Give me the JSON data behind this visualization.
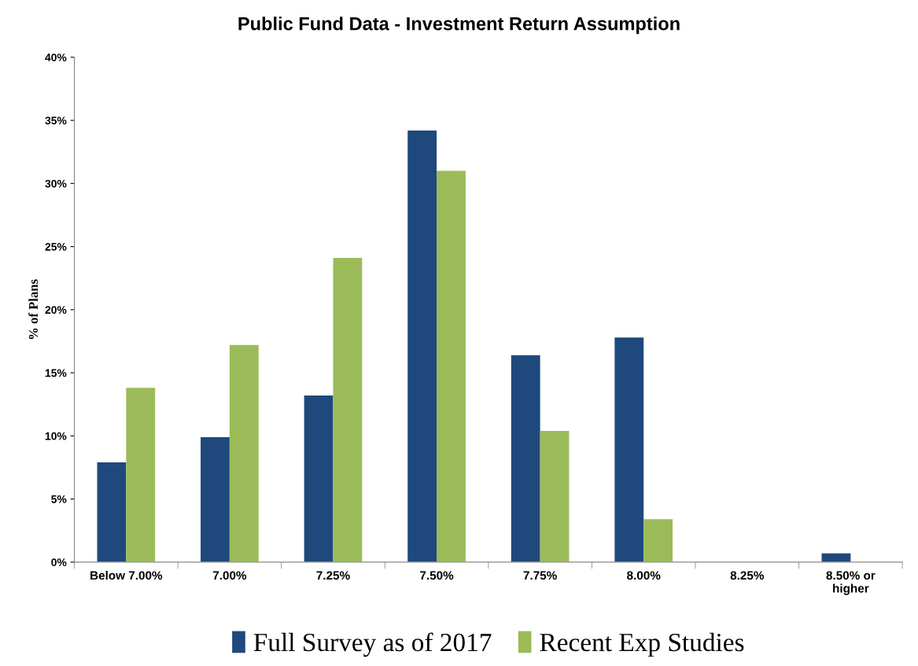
{
  "chart_data": {
    "type": "bar",
    "title": "Public Fund Data - Investment Return Assumption",
    "ylabel": "% of Plans",
    "categories": [
      "Below 7.00%",
      "7.00%",
      "7.25%",
      "7.50%",
      "7.75%",
      "8.00%",
      "8.25%",
      "8.50% or\nhigher"
    ],
    "series": [
      {
        "name": "Full Survey as of 2017",
        "color": "#1f497d",
        "values": [
          7.9,
          9.9,
          13.2,
          34.2,
          16.4,
          17.8,
          0,
          0.7
        ]
      },
      {
        "name": "Recent Exp Studies",
        "color": "#9bbb59",
        "values": [
          13.8,
          17.2,
          24.1,
          31.0,
          10.4,
          3.4,
          0,
          0
        ]
      }
    ],
    "ylim": [
      0,
      40
    ],
    "yticks": [
      {
        "value": 0,
        "label": "0%"
      },
      {
        "value": 5,
        "label": "5%"
      },
      {
        "value": 10,
        "label": "10%"
      },
      {
        "value": 15,
        "label": "15%"
      },
      {
        "value": 20,
        "label": "20%"
      },
      {
        "value": 25,
        "label": "25%"
      },
      {
        "value": 30,
        "label": "30%"
      },
      {
        "value": 35,
        "label": "35%"
      },
      {
        "value": 40,
        "label": "40%"
      }
    ],
    "grid": false,
    "legend": "bottom"
  }
}
